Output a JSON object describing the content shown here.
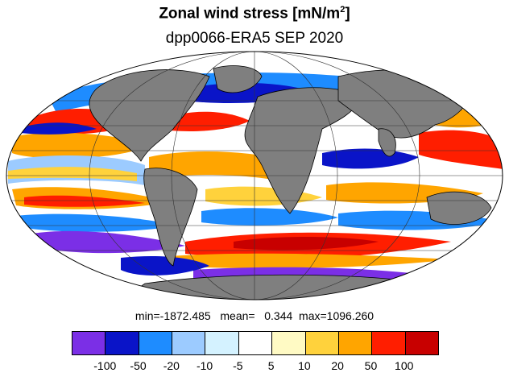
{
  "header": {
    "title_main": "Zonal wind stress [mN/m",
    "title_exp": "2",
    "title_close": "]",
    "subtitle": "dpp0066-ERA5  SEP 2020"
  },
  "stats": {
    "text": "min=-1872.485   mean=   0.344  max=1096.260"
  },
  "legend": {
    "colors": [
      "#7b2fe6",
      "#0a14c8",
      "#1e8cff",
      "#9ccbff",
      "#d4f2ff",
      "#ffffff",
      "#fffac4",
      "#ffd23c",
      "#ffa500",
      "#ff1e00",
      "#c80000"
    ],
    "tick_labels": [
      "-100",
      "-50",
      "-20",
      "-10",
      "-5",
      "5",
      "10",
      "20",
      "50",
      "100"
    ]
  },
  "map": {
    "ocean_color": "#ffffff",
    "land_color": "#7f7f7f",
    "projection": "Mollweide",
    "grid": true
  }
}
